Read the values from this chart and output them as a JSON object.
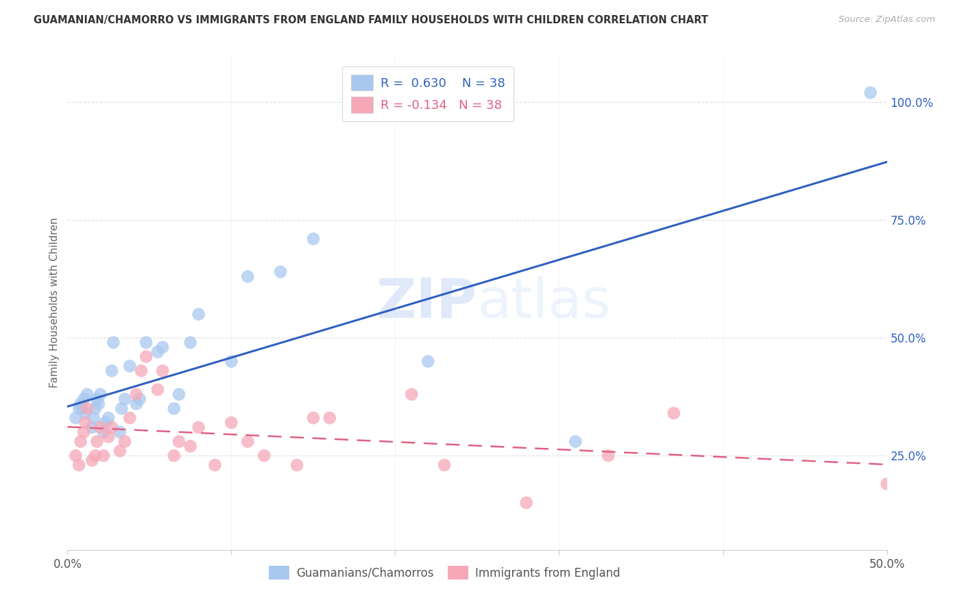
{
  "title": "GUAMANIAN/CHAMORRO VS IMMIGRANTS FROM ENGLAND FAMILY HOUSEHOLDS WITH CHILDREN CORRELATION CHART",
  "source": "Source: ZipAtlas.com",
  "ylabel": "Family Households with Children",
  "xmin": 0.0,
  "xmax": 0.5,
  "ymin": 0.05,
  "ymax": 1.1,
  "x_ticks": [
    0.0,
    0.1,
    0.2,
    0.3,
    0.4,
    0.5
  ],
  "x_tick_labels": [
    "0.0%",
    "",
    "",
    "",
    "",
    "50.0%"
  ],
  "y_ticks": [
    0.25,
    0.5,
    0.75,
    1.0
  ],
  "y_tick_labels": [
    "25.0%",
    "50.0%",
    "75.0%",
    "100.0%"
  ],
  "blue_color": "#A8C8F0",
  "pink_color": "#F5A8B8",
  "blue_line_color": "#3060C0",
  "pink_line_color": "#E06080",
  "legend_label_blue": "Guamanians/Chamorros",
  "legend_label_pink": "Immigrants from England",
  "watermark_zip": "ZIP",
  "watermark_atlas": "atlas",
  "background_color": "#FFFFFF",
  "grid_color": "#DDDDDD",
  "blue_x": [
    0.005,
    0.007,
    0.008,
    0.009,
    0.01,
    0.011,
    0.012,
    0.015,
    0.016,
    0.017,
    0.018,
    0.019,
    0.02,
    0.022,
    0.023,
    0.025,
    0.027,
    0.028,
    0.032,
    0.033,
    0.035,
    0.038,
    0.042,
    0.044,
    0.048,
    0.055,
    0.058,
    0.065,
    0.068,
    0.075,
    0.08,
    0.1,
    0.11,
    0.13,
    0.15,
    0.22,
    0.31,
    0.49
  ],
  "blue_y": [
    0.33,
    0.35,
    0.36,
    0.35,
    0.37,
    0.34,
    0.38,
    0.31,
    0.33,
    0.35,
    0.37,
    0.36,
    0.38,
    0.3,
    0.32,
    0.33,
    0.43,
    0.49,
    0.3,
    0.35,
    0.37,
    0.44,
    0.36,
    0.37,
    0.49,
    0.47,
    0.48,
    0.35,
    0.38,
    0.49,
    0.55,
    0.45,
    0.63,
    0.64,
    0.71,
    0.45,
    0.28,
    1.02
  ],
  "pink_x": [
    0.005,
    0.007,
    0.008,
    0.01,
    0.011,
    0.012,
    0.015,
    0.017,
    0.018,
    0.02,
    0.022,
    0.025,
    0.027,
    0.032,
    0.035,
    0.038,
    0.042,
    0.045,
    0.048,
    0.055,
    0.058,
    0.065,
    0.068,
    0.075,
    0.08,
    0.09,
    0.1,
    0.11,
    0.12,
    0.14,
    0.15,
    0.16,
    0.21,
    0.23,
    0.28,
    0.33,
    0.37,
    0.5
  ],
  "pink_y": [
    0.25,
    0.23,
    0.28,
    0.3,
    0.32,
    0.35,
    0.24,
    0.25,
    0.28,
    0.31,
    0.25,
    0.29,
    0.31,
    0.26,
    0.28,
    0.33,
    0.38,
    0.43,
    0.46,
    0.39,
    0.43,
    0.25,
    0.28,
    0.27,
    0.31,
    0.23,
    0.32,
    0.28,
    0.25,
    0.23,
    0.33,
    0.33,
    0.38,
    0.23,
    0.15,
    0.25,
    0.34,
    0.19
  ]
}
